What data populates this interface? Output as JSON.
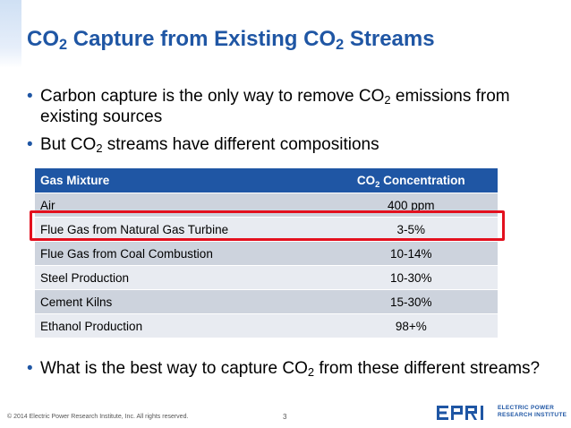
{
  "title": {
    "pre": "CO",
    "sub1": "2",
    "mid": " Capture from Existing CO",
    "sub2": "2",
    "post": " Streams"
  },
  "bullets": [
    {
      "marker": "•",
      "pre": "Carbon capture is the only way to remove CO",
      "sub": "2",
      "post": " emissions from existing sources"
    },
    {
      "marker": "•",
      "pre": "But CO",
      "sub": "2",
      "post": " streams have different compositions"
    },
    {
      "marker": "•",
      "pre": "What is the best way to capture CO",
      "sub": "2",
      "post": " from these different streams?"
    }
  ],
  "table": {
    "headers": {
      "mixture": "Gas Mixture",
      "conc_pre": "CO",
      "conc_sub": "2",
      "conc_post": " Concentration"
    },
    "rows": [
      {
        "mixture": "Air",
        "concentration": "400 ppm"
      },
      {
        "mixture": "Flue Gas from Natural Gas Turbine",
        "concentration": "3-5%"
      },
      {
        "mixture": "Flue Gas from Coal Combustion",
        "concentration": "10-14%"
      },
      {
        "mixture": "Steel Production",
        "concentration": "10-30%"
      },
      {
        "mixture": "Cement Kilns",
        "concentration": "15-30%"
      },
      {
        "mixture": "Ethanol Production",
        "concentration": "98+%"
      }
    ],
    "highlighted_row": "Flue Gas from Natural Gas Turbine"
  },
  "footer": {
    "copyright": "© 2014 Electric Power Research Institute, Inc. All rights reserved.",
    "page": "3"
  },
  "logo": {
    "name": "EPRI",
    "line1": "ELECTRIC POWER",
    "line2": "RESEARCH INSTITUTE"
  },
  "colors": {
    "title_blue": "#1f56a4",
    "header_blue": "#1f56a4",
    "row_dark": "#cdd3dd",
    "row_light": "#e8ebf1",
    "highlight_red": "#e3101e"
  }
}
